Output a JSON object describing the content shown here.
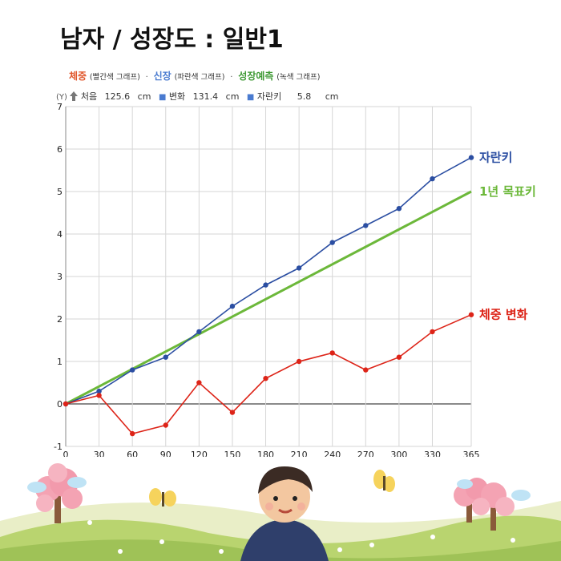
{
  "header": {
    "title": "남자 / 성장도 : 일반1",
    "legend_weight": "체중",
    "legend_weight_note": "(빨간색 그래프)",
    "legend_height": "신장",
    "legend_height_note": "(파란색 그래프)",
    "legend_growth": "성장예측",
    "legend_growth_note": "(녹색 그래프)",
    "separator": "·"
  },
  "info": {
    "y_label": "(Y)",
    "start_label": "처음",
    "start_value": "125.6",
    "unit": "cm",
    "change_label": "변화",
    "change_value": "131.4",
    "grew_label": "자란키",
    "grew_value": "5.8"
  },
  "colors": {
    "blue": "#2b4ea2",
    "green": "#6cb83a",
    "red": "#dd2418",
    "weight_legend": "#e0552a",
    "height_legend": "#4a7bd0",
    "growth_legend": "#3f9a35"
  },
  "chart_data": {
    "type": "line",
    "x": [
      0,
      30,
      60,
      90,
      120,
      150,
      180,
      210,
      240,
      270,
      300,
      330,
      365
    ],
    "xlim": [
      0,
      365
    ],
    "ylim": [
      -1,
      7
    ],
    "y_ticks": [
      -1,
      0,
      1,
      2,
      3,
      4,
      5,
      6,
      7
    ],
    "grid": true,
    "series": [
      {
        "name": "자란키",
        "color": "#2b4ea2",
        "markers": true,
        "x": [
          0,
          30,
          60,
          90,
          120,
          150,
          180,
          210,
          240,
          270,
          300,
          330,
          365
        ],
        "values": [
          0,
          0.3,
          0.8,
          1.1,
          1.7,
          2.3,
          2.8,
          3.2,
          3.8,
          4.2,
          4.6,
          5.3,
          5.8
        ]
      },
      {
        "name": "1년 목표키",
        "color": "#6cb83a",
        "markers": false,
        "x": [
          0,
          365
        ],
        "values": [
          0,
          5
        ]
      },
      {
        "name": "체중 변화",
        "color": "#dd2418",
        "markers": true,
        "x": [
          0,
          30,
          60,
          90,
          120,
          150,
          180,
          210,
          240,
          270,
          300,
          330,
          365
        ],
        "values": [
          0,
          0.2,
          -0.7,
          -0.5,
          0.5,
          -0.2,
          0.6,
          1.0,
          1.2,
          0.8,
          1.1,
          1.7,
          2.1
        ]
      }
    ]
  }
}
